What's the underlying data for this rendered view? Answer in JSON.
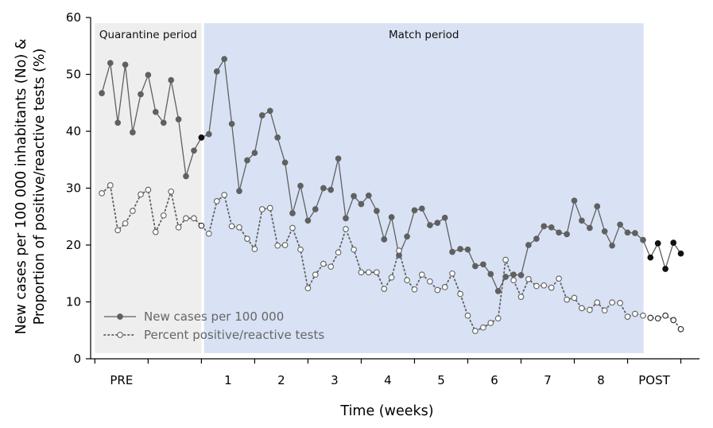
{
  "chart_data": {
    "type": "line",
    "ylabel_line1": "New cases per 100 000 inhabitants (No) &",
    "ylabel_line2": "Proportion of positive/reactive tests (%)",
    "xlabel": "Time (weeks)",
    "ylim": [
      0,
      60
    ],
    "yticks": [
      0,
      10,
      20,
      30,
      40,
      50,
      60
    ],
    "x_tick_labels": [
      "PRE",
      "1",
      "2",
      "3",
      "4",
      "5",
      "6",
      "7",
      "8",
      "POST"
    ],
    "x_tick_label_pos": [
      0.5,
      2.5,
      3.5,
      4.5,
      5.5,
      6.5,
      7.5,
      8.5,
      9.5,
      10.5
    ],
    "x_tick_marks": [
      0,
      1,
      2,
      3,
      4,
      5,
      6,
      7,
      8,
      9,
      10,
      11
    ],
    "xlim": [
      -0.08,
      11.35
    ],
    "periods": [
      {
        "label": "Quarantine period",
        "x0": 0,
        "x1": 2,
        "color": "#eeeeee"
      },
      {
        "label": "Match period",
        "x0": 2.05,
        "x1": 10.3,
        "color": "#d8e2f4"
      }
    ],
    "legend": {
      "placement": "bottom-left",
      "entries": [
        "New cases per 100 000",
        "Percent positive/reactive tests"
      ]
    },
    "series": [
      {
        "name": "New cases per 100 000",
        "style": "solid",
        "color": "#606060",
        "x": [
          0.13,
          0.29,
          0.43,
          0.57,
          0.71,
          0.86,
          1.0,
          1.14,
          1.29,
          1.43,
          1.57,
          1.71,
          1.86,
          2.0,
          2.14,
          2.29,
          2.43,
          2.57,
          2.71,
          2.86,
          3.0,
          3.14,
          3.29,
          3.43,
          3.57,
          3.71,
          3.86,
          4.0,
          4.14,
          4.29,
          4.43,
          4.57,
          4.71,
          4.86,
          5.0,
          5.14,
          5.29,
          5.43,
          5.57,
          5.71,
          5.86,
          6.0,
          6.14,
          6.29,
          6.43,
          6.57,
          6.71,
          6.86,
          7.0,
          7.14,
          7.29,
          7.43,
          7.57,
          7.71,
          7.86,
          8.0,
          8.14,
          8.29,
          8.43,
          8.57,
          8.71,
          8.86,
          9.0,
          9.14,
          9.29,
          9.43,
          9.57,
          9.71,
          9.86,
          10.0,
          10.14,
          10.29,
          10.43,
          10.57,
          10.71,
          10.86,
          11.0
        ],
        "y": [
          46.7,
          52.0,
          41.5,
          51.7,
          39.8,
          46.5,
          49.9,
          43.4,
          41.5,
          49.0,
          42.1,
          32.1,
          36.6,
          38.9,
          39.5,
          50.5,
          52.7,
          41.3,
          29.5,
          34.9,
          36.2,
          42.8,
          43.6,
          38.9,
          34.5,
          25.6,
          30.4,
          24.3,
          26.3,
          30.0,
          29.7,
          35.2,
          24.7,
          28.6,
          27.2,
          28.7,
          26.0,
          21.0,
          24.9,
          18.2,
          21.5,
          26.1,
          26.4,
          23.5,
          23.9,
          24.8,
          18.8,
          19.3,
          19.2,
          16.3,
          16.6,
          14.9,
          11.9,
          14.4,
          14.8,
          14.7,
          20.0,
          21.1,
          23.3,
          23.1,
          22.2,
          21.9,
          27.8,
          24.3,
          23.0,
          26.8,
          22.4,
          19.9,
          23.6,
          22.2,
          22.1,
          20.9,
          17.8,
          20.3,
          15.8,
          20.4,
          18.5
        ]
      },
      {
        "name": "Percent positive/reactive tests",
        "style": "dotted",
        "color": "#606060",
        "x": [
          0.13,
          0.29,
          0.43,
          0.57,
          0.71,
          0.86,
          1.0,
          1.14,
          1.29,
          1.43,
          1.57,
          1.71,
          1.86,
          2.0,
          2.14,
          2.29,
          2.43,
          2.57,
          2.71,
          2.86,
          3.0,
          3.14,
          3.29,
          3.43,
          3.57,
          3.71,
          3.86,
          4.0,
          4.14,
          4.29,
          4.43,
          4.57,
          4.71,
          4.86,
          5.0,
          5.14,
          5.29,
          5.43,
          5.57,
          5.71,
          5.86,
          6.0,
          6.14,
          6.29,
          6.43,
          6.57,
          6.71,
          6.86,
          7.0,
          7.14,
          7.29,
          7.43,
          7.57,
          7.71,
          7.86,
          8.0,
          8.14,
          8.29,
          8.43,
          8.57,
          8.71,
          8.86,
          9.0,
          9.14,
          9.29,
          9.43,
          9.57,
          9.71,
          9.86,
          10.0,
          10.14,
          10.29,
          10.43,
          10.57,
          10.71,
          10.86,
          11.0
        ],
        "y": [
          29.1,
          30.5,
          22.6,
          23.8,
          26.0,
          28.9,
          29.7,
          22.3,
          25.2,
          29.4,
          23.1,
          24.7,
          24.7,
          23.4,
          22.0,
          27.7,
          28.8,
          23.3,
          23.1,
          21.1,
          19.3,
          26.3,
          26.5,
          19.9,
          20.0,
          23.0,
          19.2,
          12.4,
          14.8,
          16.7,
          16.2,
          18.7,
          22.8,
          19.2,
          15.2,
          15.2,
          15.2,
          12.3,
          14.3,
          19.0,
          13.8,
          12.2,
          14.8,
          13.6,
          12.1,
          12.6,
          15.0,
          11.4,
          7.6,
          4.9,
          5.5,
          6.3,
          7.1,
          17.4,
          13.8,
          10.9,
          14.0,
          12.8,
          12.9,
          12.5,
          14.1,
          10.4,
          10.7,
          8.9,
          8.6,
          9.9,
          8.5,
          9.9,
          9.8,
          7.4,
          7.9,
          7.6,
          7.2,
          7.1,
          7.6,
          6.8,
          5.2
        ]
      }
    ]
  }
}
